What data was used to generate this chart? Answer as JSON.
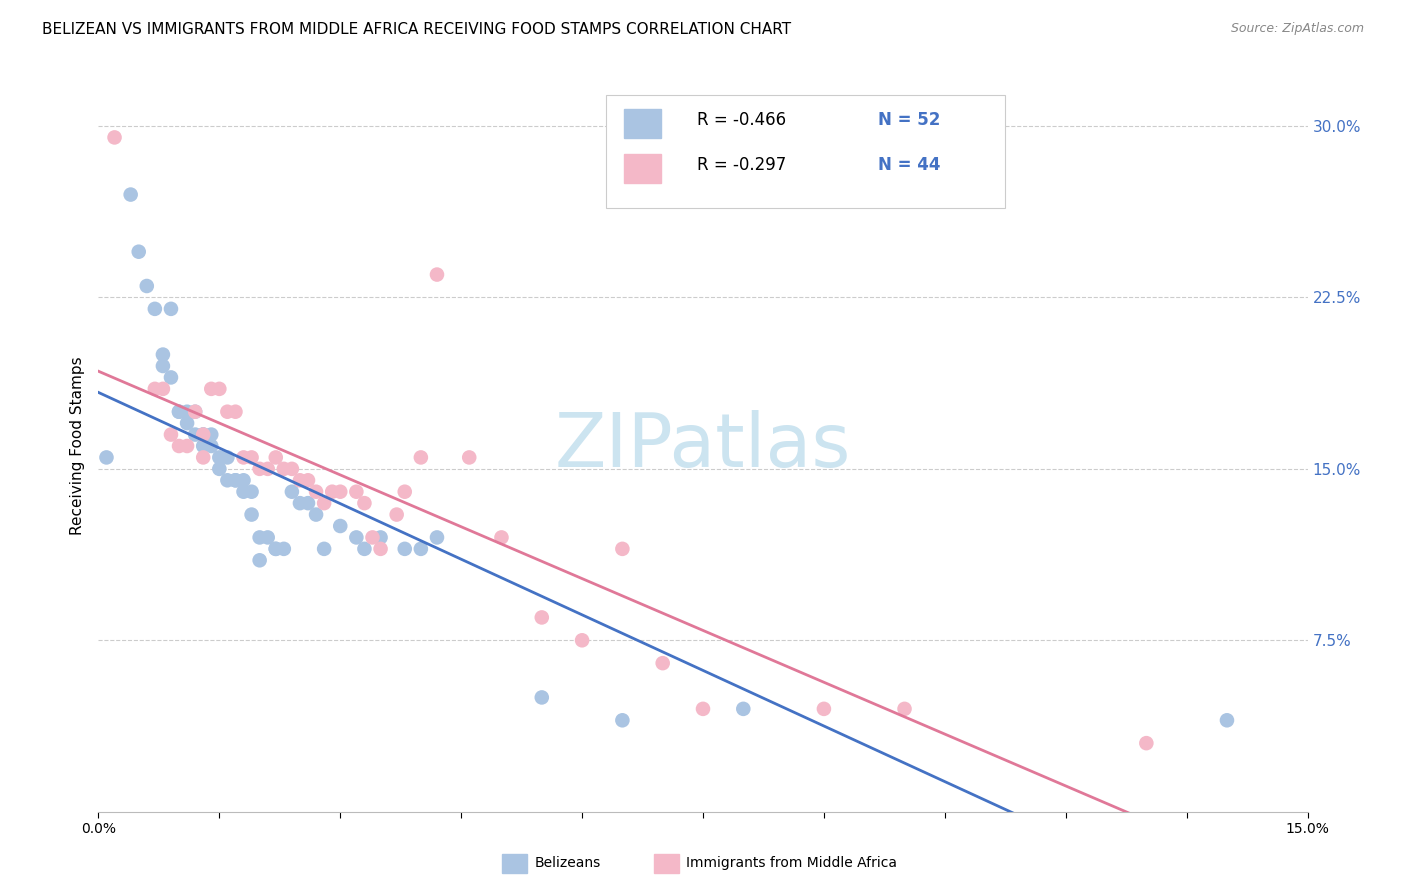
{
  "title": "BELIZEAN VS IMMIGRANTS FROM MIDDLE AFRICA RECEIVING FOOD STAMPS CORRELATION CHART",
  "source": "Source: ZipAtlas.com",
  "ylabel": "Receiving Food Stamps",
  "ytick_values": [
    0.075,
    0.15,
    0.225,
    0.3
  ],
  "xlim": [
    0.0,
    0.15
  ],
  "ylim": [
    0.0,
    0.32
  ],
  "legend_entries": [
    {
      "r_text": "R = -0.466",
      "n_text": "N = 52",
      "color": "#aac4e2"
    },
    {
      "r_text": "R = -0.297",
      "n_text": "N = 44",
      "color": "#f4b8c8"
    }
  ],
  "legend_bottom": [
    {
      "label": "Belizeans",
      "color": "#aac4e2"
    },
    {
      "label": "Immigrants from Middle Africa",
      "color": "#f4b8c8"
    }
  ],
  "belizean_x": [
    0.001,
    0.004,
    0.005,
    0.006,
    0.007,
    0.008,
    0.008,
    0.009,
    0.009,
    0.01,
    0.01,
    0.011,
    0.011,
    0.012,
    0.012,
    0.013,
    0.013,
    0.013,
    0.014,
    0.014,
    0.015,
    0.015,
    0.016,
    0.016,
    0.017,
    0.017,
    0.018,
    0.018,
    0.019,
    0.019,
    0.02,
    0.02,
    0.021,
    0.022,
    0.022,
    0.023,
    0.024,
    0.025,
    0.026,
    0.027,
    0.028,
    0.03,
    0.032,
    0.033,
    0.035,
    0.038,
    0.04,
    0.042,
    0.055,
    0.065,
    0.08,
    0.14
  ],
  "belizean_y": [
    0.155,
    0.27,
    0.245,
    0.23,
    0.22,
    0.2,
    0.195,
    0.22,
    0.19,
    0.175,
    0.175,
    0.175,
    0.17,
    0.175,
    0.165,
    0.165,
    0.165,
    0.16,
    0.165,
    0.16,
    0.155,
    0.15,
    0.155,
    0.145,
    0.145,
    0.145,
    0.145,
    0.14,
    0.14,
    0.13,
    0.12,
    0.11,
    0.12,
    0.115,
    0.115,
    0.115,
    0.14,
    0.135,
    0.135,
    0.13,
    0.115,
    0.125,
    0.12,
    0.115,
    0.12,
    0.115,
    0.115,
    0.12,
    0.05,
    0.04,
    0.045,
    0.04
  ],
  "africa_x": [
    0.002,
    0.007,
    0.008,
    0.009,
    0.01,
    0.011,
    0.012,
    0.013,
    0.013,
    0.014,
    0.015,
    0.016,
    0.017,
    0.018,
    0.019,
    0.02,
    0.021,
    0.022,
    0.023,
    0.024,
    0.025,
    0.026,
    0.027,
    0.028,
    0.029,
    0.03,
    0.032,
    0.033,
    0.034,
    0.035,
    0.037,
    0.038,
    0.04,
    0.042,
    0.046,
    0.05,
    0.055,
    0.06,
    0.065,
    0.07,
    0.075,
    0.09,
    0.1,
    0.13
  ],
  "africa_y": [
    0.295,
    0.185,
    0.185,
    0.165,
    0.16,
    0.16,
    0.175,
    0.165,
    0.155,
    0.185,
    0.185,
    0.175,
    0.175,
    0.155,
    0.155,
    0.15,
    0.15,
    0.155,
    0.15,
    0.15,
    0.145,
    0.145,
    0.14,
    0.135,
    0.14,
    0.14,
    0.14,
    0.135,
    0.12,
    0.115,
    0.13,
    0.14,
    0.155,
    0.235,
    0.155,
    0.12,
    0.085,
    0.075,
    0.115,
    0.065,
    0.045,
    0.045,
    0.045,
    0.03
  ],
  "belizean_color": "#aac4e2",
  "africa_color": "#f4b8c8",
  "belizean_line_color": "#4472c4",
  "africa_line_color": "#e07898",
  "background_color": "#ffffff",
  "watermark_text": "ZIPatlas",
  "watermark_color": "#cce4f0",
  "title_fontsize": 11,
  "source_fontsize": 9,
  "tick_color_y": "#4472c4",
  "grid_color": "#cccccc"
}
